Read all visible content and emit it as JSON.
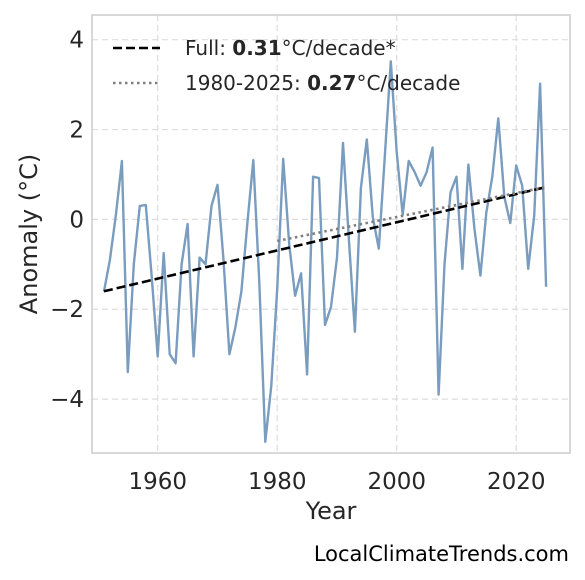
{
  "chart_data": {
    "type": "line",
    "xlabel": "Year",
    "ylabel": "Anomaly (°C)",
    "xlim": [
      1949,
      2029
    ],
    "ylim": [
      -5.2,
      4.55
    ],
    "xticks": [
      1960,
      1980,
      2000,
      2020
    ],
    "yticks": [
      -4,
      -2,
      0,
      2,
      4
    ],
    "grid": true,
    "legend_position": "top-left",
    "colors": {
      "anomaly": "#7a9cbf",
      "full_trend": "#000000",
      "recent_trend": "#808080"
    },
    "x": [
      1951,
      1952,
      1953,
      1954,
      1955,
      1956,
      1957,
      1958,
      1959,
      1960,
      1961,
      1962,
      1963,
      1964,
      1965,
      1966,
      1967,
      1968,
      1969,
      1970,
      1971,
      1972,
      1973,
      1974,
      1975,
      1976,
      1977,
      1978,
      1979,
      1980,
      1981,
      1982,
      1983,
      1984,
      1985,
      1986,
      1987,
      1988,
      1989,
      1990,
      1991,
      1992,
      1993,
      1994,
      1995,
      1996,
      1997,
      1998,
      1999,
      2000,
      2001,
      2002,
      2003,
      2004,
      2005,
      2006,
      2007,
      2008,
      2009,
      2010,
      2011,
      2012,
      2013,
      2014,
      2015,
      2016,
      2017,
      2018,
      2019,
      2020,
      2021,
      2022,
      2023,
      2024,
      2025
    ],
    "series": [
      {
        "values": [
          -1.6,
          -0.9,
          0.1,
          1.3,
          -3.4,
          -1.0,
          0.3,
          0.32,
          -1.3,
          -3.05,
          -0.75,
          -3.0,
          -3.2,
          -1.0,
          -0.1,
          -3.05,
          -0.85,
          -1.0,
          0.3,
          0.77,
          -0.9,
          -3.0,
          -2.4,
          -1.6,
          -0.1,
          1.32,
          -1.4,
          -4.95,
          -3.7,
          -1.55,
          1.35,
          -0.55,
          -1.7,
          -1.2,
          -3.45,
          0.95,
          0.92,
          -2.35,
          -1.95,
          -0.85,
          1.7,
          -0.45,
          -2.5,
          0.7,
          1.78,
          0.05,
          -0.65,
          1.4,
          3.52,
          1.5,
          0.1,
          1.3,
          1.05,
          0.75,
          1.05,
          1.6,
          -3.9,
          -1.0,
          0.6,
          0.95,
          -1.1,
          1.22,
          -0.2,
          -1.25,
          0.15,
          0.95,
          2.25,
          0.5,
          -0.08,
          1.2,
          0.75,
          -1.1,
          0.08,
          3.02,
          -1.5
        ]
      },
      {
        "style": "dashed",
        "x": [
          1951,
          2025
        ],
        "values": [
          -1.6,
          0.72
        ]
      },
      {
        "style": "dotted",
        "x": [
          1980,
          2025
        ],
        "values": [
          -0.48,
          0.72
        ]
      }
    ],
    "legend": [
      {
        "style": "dashed",
        "prefix": "Full: ",
        "value": "0.31",
        "suffix": "°C/decade*"
      },
      {
        "style": "dotted",
        "prefix": "1980-2025: ",
        "value": "0.27",
        "suffix": "°C/decade"
      }
    ]
  },
  "watermark": "LocalClimateTrends.com"
}
